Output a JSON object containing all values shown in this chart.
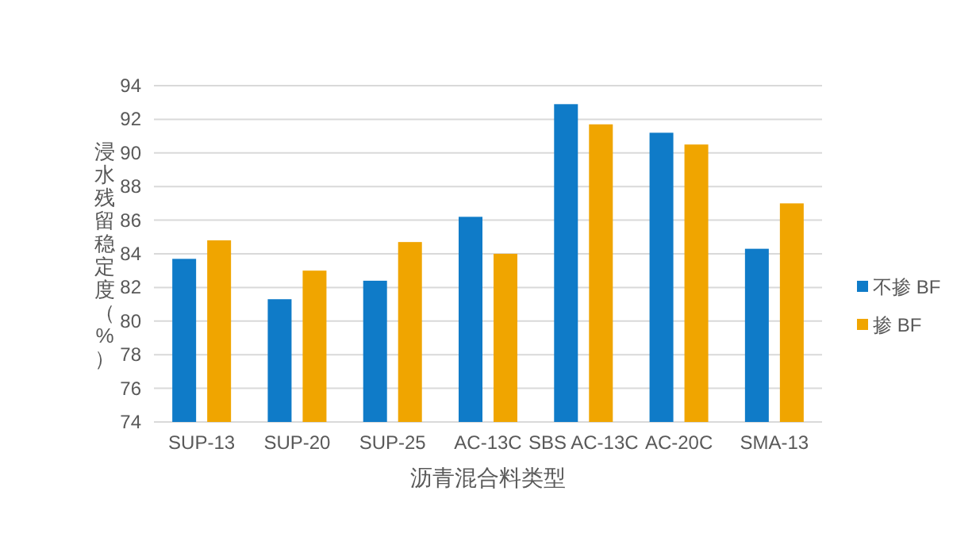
{
  "chart_data": {
    "type": "bar",
    "xlabel": "沥青混合料类型",
    "ylabel": "浸水残留稳定度（%）",
    "categories": [
      "SUP-13",
      "SUP-20",
      "SUP-25",
      "AC-13C",
      "SBS AC-13C",
      "AC-20C",
      "SMA-13"
    ],
    "series": [
      {
        "name": "不掺 BF",
        "color": "#0f7bc8",
        "values": [
          83.7,
          81.3,
          82.4,
          86.2,
          92.9,
          91.2,
          84.3
        ]
      },
      {
        "name": "掺 BF",
        "color": "#f0a500",
        "values": [
          84.8,
          83.0,
          84.7,
          84.0,
          91.7,
          90.5,
          87.0
        ]
      }
    ],
    "ylim": [
      74,
      94
    ],
    "yticks": [
      74,
      76,
      78,
      80,
      82,
      84,
      86,
      88,
      90,
      92,
      94
    ],
    "grid": "y",
    "legend": "right"
  }
}
